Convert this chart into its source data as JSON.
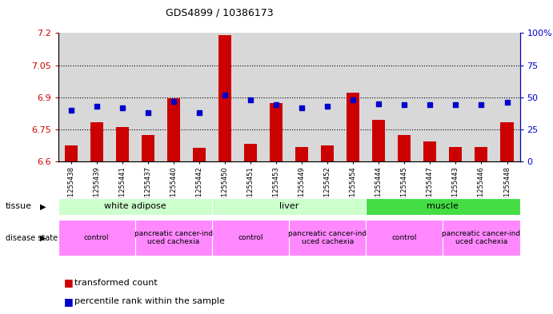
{
  "title": "GDS4899 / 10386173",
  "samples": [
    "GSM1255438",
    "GSM1255439",
    "GSM1255441",
    "GSM1255437",
    "GSM1255440",
    "GSM1255442",
    "GSM1255450",
    "GSM1255451",
    "GSM1255453",
    "GSM1255449",
    "GSM1255452",
    "GSM1255454",
    "GSM1255444",
    "GSM1255445",
    "GSM1255447",
    "GSM1255443",
    "GSM1255446",
    "GSM1255448"
  ],
  "transformed_count": [
    6.675,
    6.785,
    6.76,
    6.725,
    6.895,
    6.665,
    7.19,
    6.685,
    6.875,
    6.67,
    6.675,
    6.92,
    6.795,
    6.725,
    6.695,
    6.67,
    6.67,
    6.785
  ],
  "percentile_rank": [
    40,
    43,
    42,
    38,
    47,
    38,
    52,
    48,
    44,
    42,
    43,
    48,
    45,
    44,
    44,
    44,
    44,
    46
  ],
  "ylim_left": [
    6.6,
    7.2
  ],
  "ylim_right": [
    0,
    100
  ],
  "yticks_left": [
    6.6,
    6.75,
    6.9,
    7.05,
    7.2
  ],
  "yticks_right": [
    0,
    25,
    50,
    75,
    100
  ],
  "ytick_labels_left": [
    "6.6",
    "6.75",
    "6.9",
    "7.05",
    "7.2"
  ],
  "ytick_labels_right": [
    "0",
    "25",
    "50",
    "75",
    "100%"
  ],
  "hgrid_lines": [
    6.75,
    6.9,
    7.05
  ],
  "bar_color": "#cc0000",
  "dot_color": "#0000cc",
  "plot_bg_color": "#d8d8d8",
  "tissue_groups": [
    {
      "label": "white adipose",
      "start": 0,
      "end": 6,
      "color": "#ccffcc"
    },
    {
      "label": "liver",
      "start": 6,
      "end": 12,
      "color": "#ccffcc"
    },
    {
      "label": "muscle",
      "start": 12,
      "end": 18,
      "color": "#44dd44"
    }
  ],
  "disease_groups": [
    {
      "label": "control",
      "start": 0,
      "end": 3
    },
    {
      "label": "pancreatic cancer-ind\nuced cachexia",
      "start": 3,
      "end": 6
    },
    {
      "label": "control",
      "start": 6,
      "end": 9
    },
    {
      "label": "pancreatic cancer-ind\nuced cachexia",
      "start": 9,
      "end": 12
    },
    {
      "label": "control",
      "start": 12,
      "end": 15
    },
    {
      "label": "pancreatic cancer-ind\nuced cachexia",
      "start": 15,
      "end": 18
    }
  ],
  "disease_color": "#ff88ff",
  "bg_color": "#ffffff",
  "left_axis_color": "#cc0000",
  "right_axis_color": "#0000cc",
  "bar_width": 0.5
}
